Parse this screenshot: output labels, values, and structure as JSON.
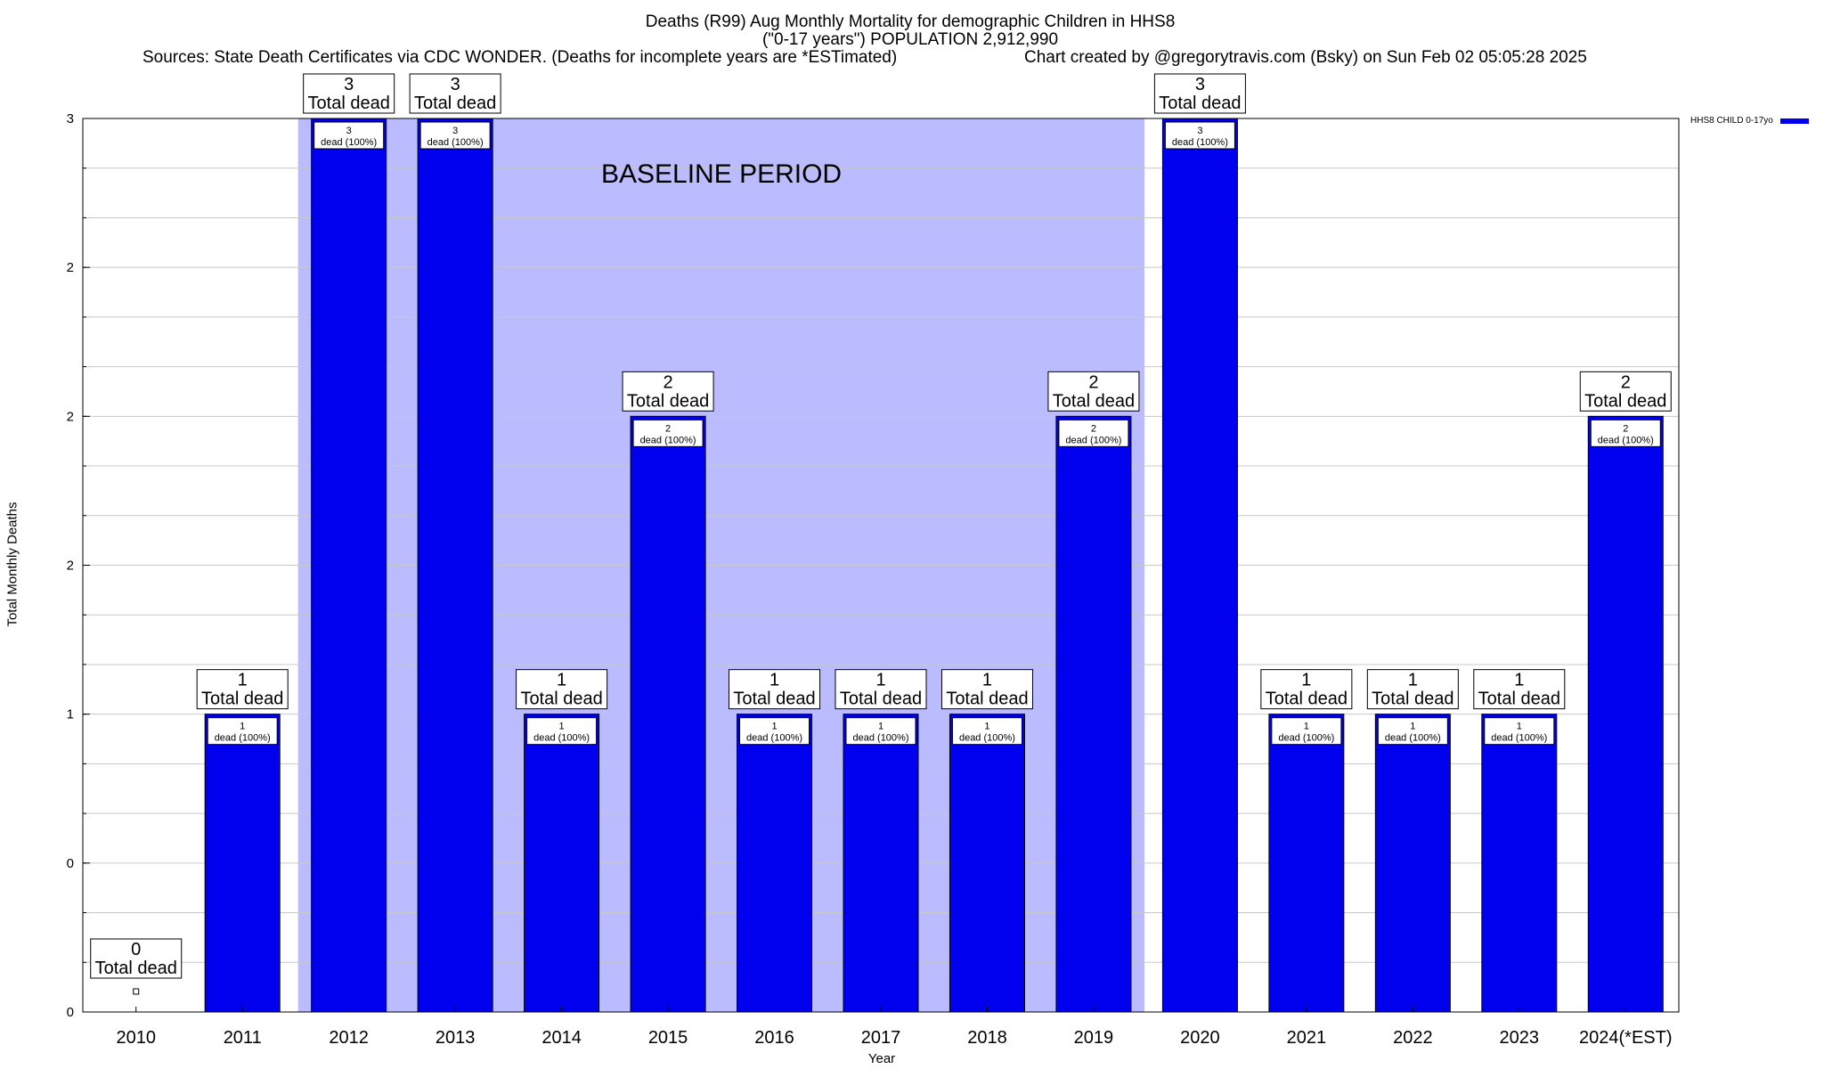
{
  "header": {
    "title_line1": "Deaths (R99) Aug Monthly Mortality for demographic Children in HHS8",
    "title_line2": "(\"0-17 years\") POPULATION 2,912,990",
    "sources": "Sources: State Death Certificates via CDC WONDER. (Deaths for incomplete years are *ESTimated)",
    "credit": "Chart created by @gregorytravis.com (Bsky) on Sun Feb 02 05:05:28 2025"
  },
  "chart_data": {
    "type": "bar",
    "categories": [
      "2010",
      "2011",
      "2012",
      "2013",
      "2014",
      "2015",
      "2016",
      "2017",
      "2018",
      "2019",
      "2020",
      "2021",
      "2022",
      "2023",
      "2024(*EST)"
    ],
    "series": [
      {
        "name": "HHS8 CHILD 0-17yo",
        "values": [
          0,
          1,
          3,
          3,
          1,
          2,
          1,
          1,
          1,
          2,
          3,
          1,
          1,
          1,
          2
        ]
      }
    ],
    "ylabel": "Total Monthly Deaths",
    "xlabel": "Year",
    "ylim": [
      0,
      3
    ],
    "y_tick_labels": [
      "0",
      "0",
      "1",
      "2",
      "2",
      "2",
      "3"
    ],
    "grid": true,
    "legend_position": "top-right",
    "annotation": "BASELINE PERIOD",
    "baseline_period": [
      "2012",
      "2019"
    ],
    "total_label": "Total dead",
    "bar_label_suffix": "dead (100%)",
    "colors": {
      "bar": "#0000ee",
      "baseline_shade": "#bbbbff",
      "grid": "#c8c8c8"
    }
  }
}
